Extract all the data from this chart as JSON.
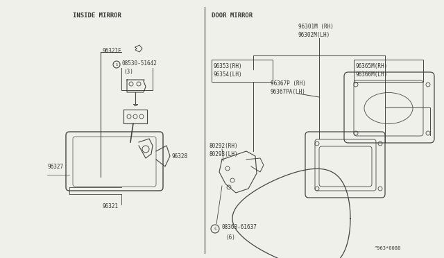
{
  "bg_color": "#f0f0ea",
  "line_color": "#444444",
  "text_color": "#333333",
  "section_left": "INSIDE MIRROR",
  "section_right": "DOOR MIRROR",
  "part_code": "^963*0088"
}
